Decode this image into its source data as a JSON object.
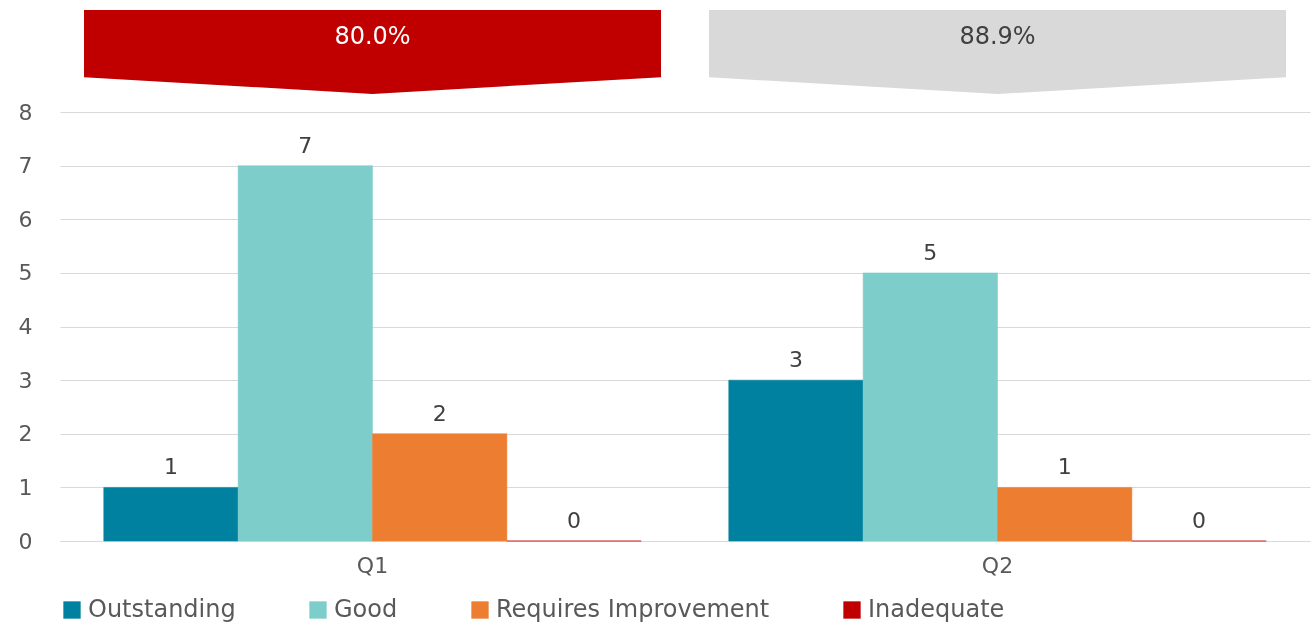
{
  "chart_data": {
    "type": "bar",
    "categories": [
      "Q1",
      "Q2"
    ],
    "series": [
      {
        "name": "Outstanding",
        "color": "#00819f",
        "values": [
          1,
          3
        ]
      },
      {
        "name": "Good",
        "color": "#7dcdcb",
        "values": [
          7,
          5
        ]
      },
      {
        "name": "Requires Improvement",
        "color": "#ed7d31",
        "values": [
          2,
          1
        ]
      },
      {
        "name": "Inadequate",
        "color": "#c00000",
        "values": [
          0,
          0
        ]
      }
    ],
    "ylim": [
      0,
      8
    ],
    "yticks": [
      0,
      1,
      2,
      3,
      4,
      5,
      6,
      7,
      8
    ],
    "grid": "y",
    "legend": "bottom",
    "data_labels": true,
    "annotations": [
      "80.0%",
      "88.9%"
    ]
  }
}
